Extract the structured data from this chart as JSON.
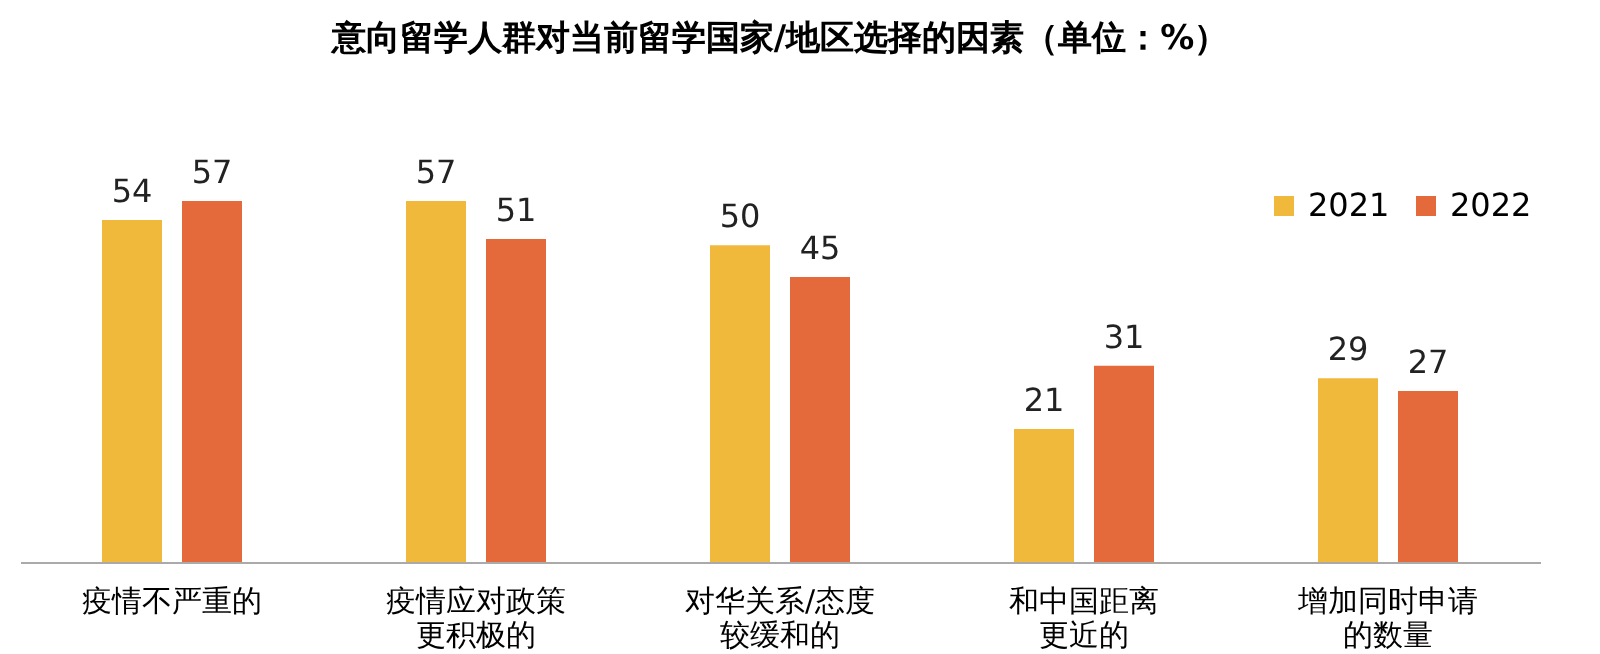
{
  "chart_data": {
    "type": "bar",
    "title": "意向留学人群对当前留学国家/地区选择的因素（单位：%）",
    "categories": [
      "疫情不严重的",
      "疫情应对政策更积极的",
      "对华关系/态度较缓和的",
      "和中国距离更近的",
      "增加同时申请的数量"
    ],
    "series": [
      {
        "name": "2021",
        "color": "#f0b93c",
        "values": [
          54,
          57,
          50,
          21,
          29
        ]
      },
      {
        "name": "2022",
        "color": "#e46a3c",
        "values": [
          57,
          51,
          45,
          31,
          27
        ]
      }
    ],
    "data_labels": true,
    "legend": "top right",
    "grid": false
  }
}
